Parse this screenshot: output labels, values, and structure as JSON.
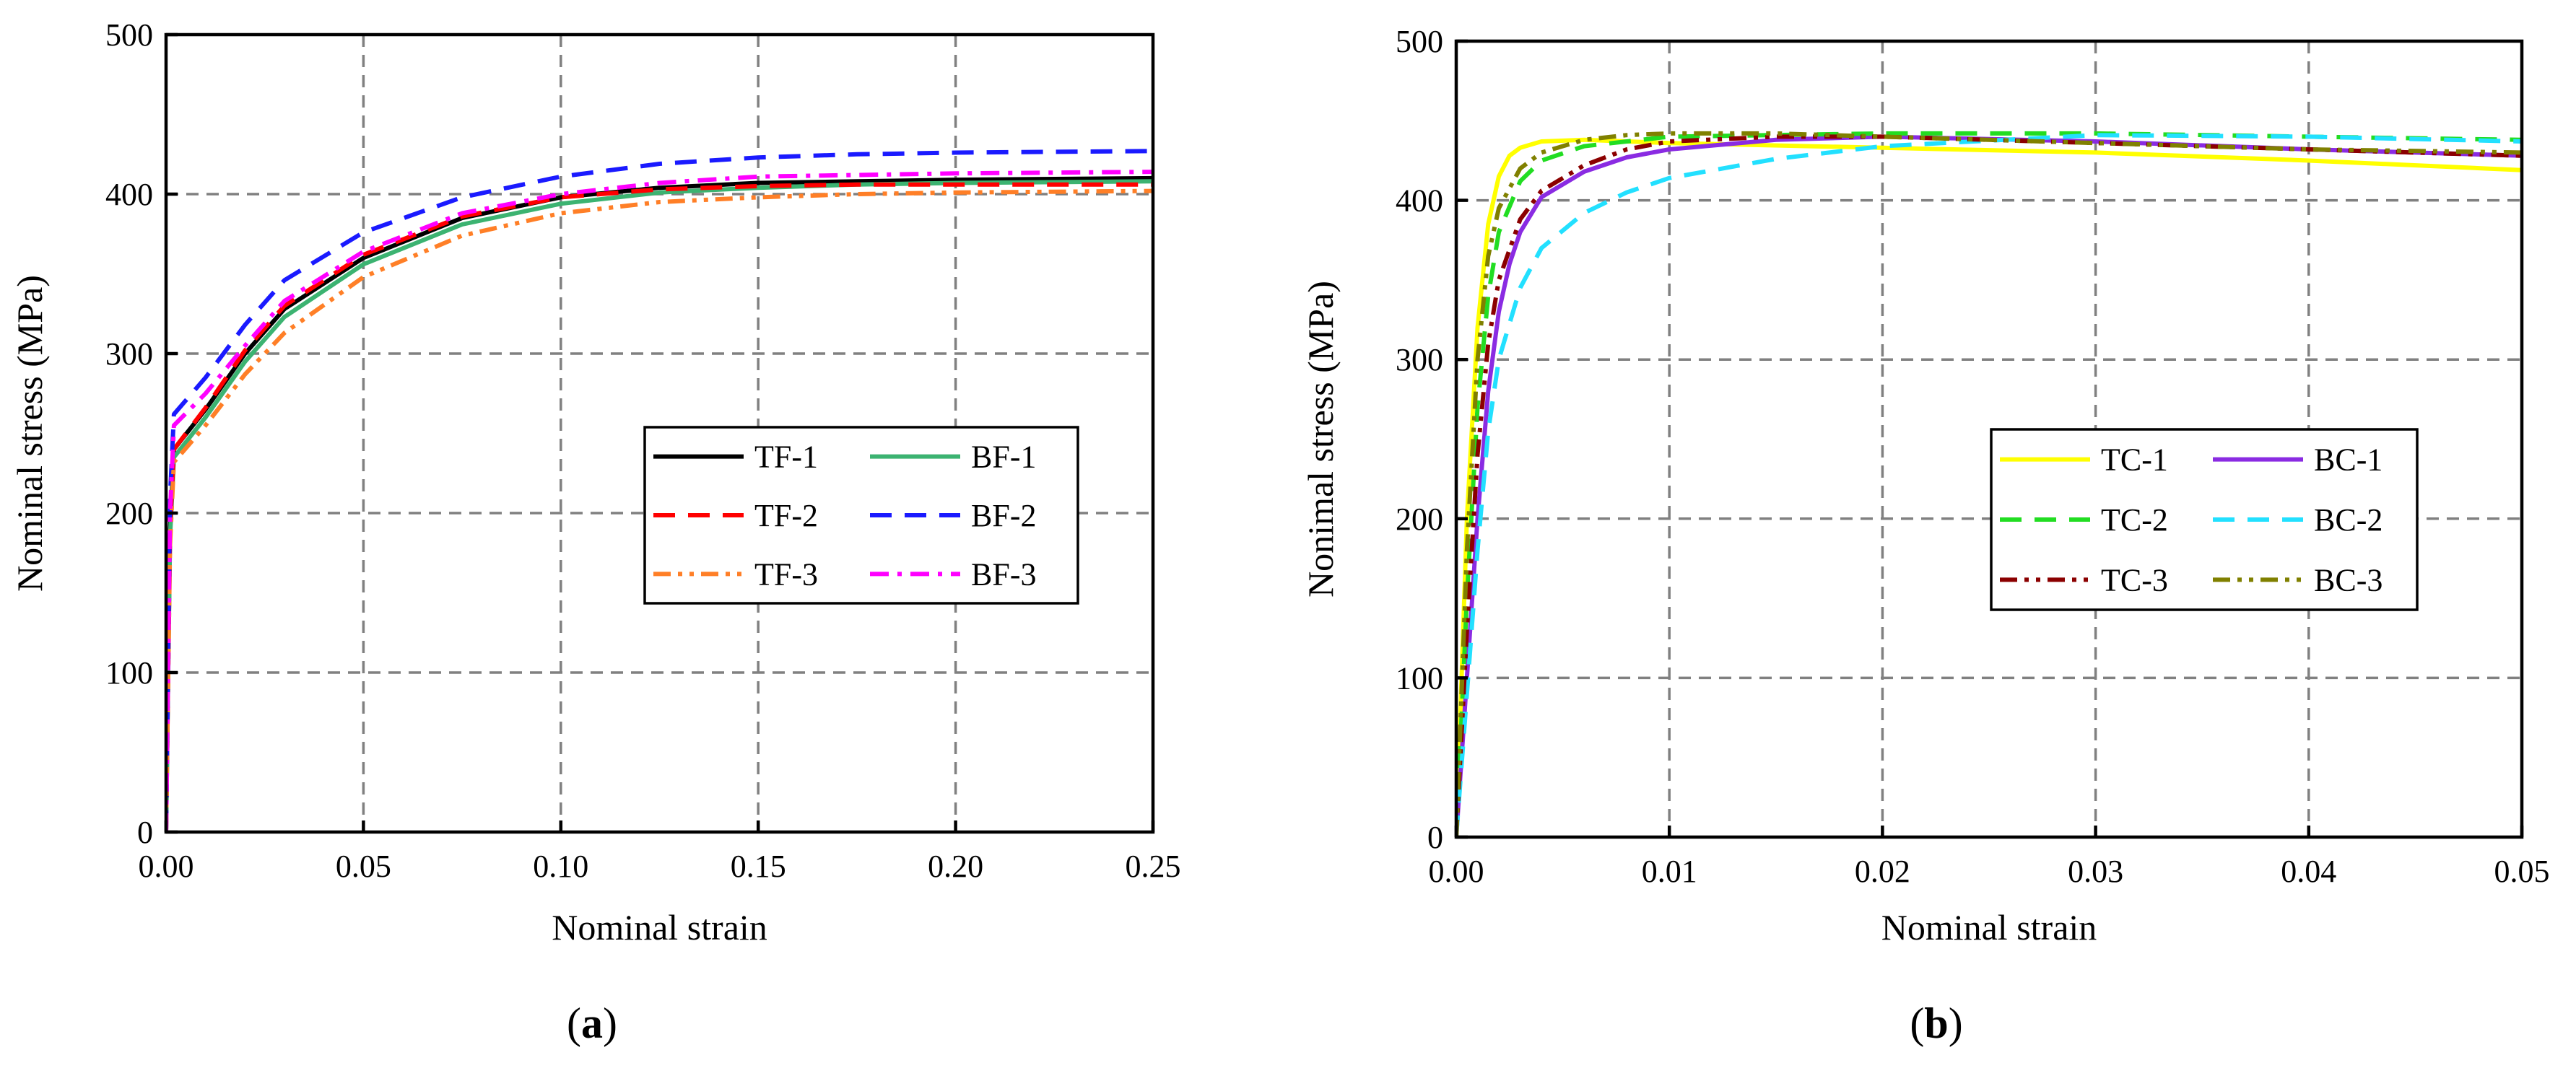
{
  "chart_data": [
    {
      "type": "line",
      "panel_label": "a",
      "title": "",
      "xlabel": "Nominal strain",
      "ylabel": "Nominal stress (MPa)",
      "xlim": [
        0,
        0.25
      ],
      "ylim": [
        0,
        500
      ],
      "xticks": [
        "0.00",
        "0.05",
        "0.10",
        "0.15",
        "0.20",
        "0.25"
      ],
      "yticks": [
        "0",
        "100",
        "200",
        "300",
        "400",
        "500"
      ],
      "grid": true,
      "legend_position": "center-right",
      "legend_columns": 2,
      "series": [
        {
          "name": "TF-1",
          "color": "#000000",
          "dash": "solid",
          "x": [
            0,
            0.001,
            0.002,
            0.01,
            0.02,
            0.03,
            0.05,
            0.075,
            0.1,
            0.125,
            0.15,
            0.175,
            0.2,
            0.25
          ],
          "y": [
            0,
            190,
            240,
            265,
            300,
            328,
            360,
            385,
            398,
            404,
            407,
            408,
            409,
            410
          ]
        },
        {
          "name": "BF-1",
          "color": "#3cb371",
          "dash": "solid",
          "x": [
            0,
            0.001,
            0.002,
            0.01,
            0.02,
            0.03,
            0.05,
            0.075,
            0.1,
            0.125,
            0.15,
            0.175,
            0.2,
            0.25
          ],
          "y": [
            0,
            185,
            235,
            260,
            295,
            323,
            356,
            381,
            394,
            401,
            404,
            406,
            407,
            408
          ]
        },
        {
          "name": "TF-2",
          "color": "#ff0000",
          "dash": "dash",
          "x": [
            0,
            0.001,
            0.002,
            0.01,
            0.02,
            0.03,
            0.05,
            0.075,
            0.1,
            0.125,
            0.15,
            0.175,
            0.2,
            0.25
          ],
          "y": [
            0,
            190,
            240,
            266,
            302,
            330,
            362,
            386,
            398,
            403,
            405,
            406,
            406,
            406
          ]
        },
        {
          "name": "BF-2",
          "color": "#1a1aff",
          "dash": "dash",
          "x": [
            0,
            0.001,
            0.002,
            0.01,
            0.02,
            0.03,
            0.05,
            0.075,
            0.1,
            0.125,
            0.15,
            0.175,
            0.2,
            0.25
          ],
          "y": [
            0,
            210,
            262,
            285,
            318,
            346,
            376,
            398,
            411,
            419,
            423,
            425,
            426,
            427
          ]
        },
        {
          "name": "TF-3",
          "color": "#ff7f27",
          "dash": "dashdotdot",
          "x": [
            0,
            0.001,
            0.002,
            0.01,
            0.02,
            0.03,
            0.05,
            0.075,
            0.1,
            0.125,
            0.15,
            0.175,
            0.2,
            0.25
          ],
          "y": [
            0,
            180,
            232,
            255,
            287,
            313,
            348,
            374,
            388,
            395,
            398,
            400,
            401,
            402
          ]
        },
        {
          "name": "BF-3",
          "color": "#ff00ff",
          "dash": "dashdot",
          "x": [
            0,
            0.001,
            0.002,
            0.01,
            0.02,
            0.03,
            0.05,
            0.075,
            0.1,
            0.125,
            0.15,
            0.175,
            0.2,
            0.25
          ],
          "y": [
            0,
            200,
            255,
            275,
            305,
            333,
            364,
            388,
            400,
            407,
            411,
            412,
            413,
            414
          ]
        }
      ]
    },
    {
      "type": "line",
      "panel_label": "b",
      "title": "",
      "xlabel": "Nominal strain",
      "ylabel": "Nonimal stress (MPa)",
      "xlim": [
        0,
        0.05
      ],
      "ylim": [
        0,
        500
      ],
      "xticks": [
        "0.00",
        "0.01",
        "0.02",
        "0.03",
        "0.04",
        "0.05"
      ],
      "yticks": [
        "0",
        "100",
        "200",
        "300",
        "400",
        "500"
      ],
      "grid": true,
      "legend_position": "center-right",
      "legend_columns": 2,
      "series": [
        {
          "name": "TC-1",
          "color": "#ffff00",
          "dash": "solid",
          "x": [
            0,
            0.0005,
            0.001,
            0.0015,
            0.002,
            0.0025,
            0.003,
            0.004,
            0.006,
            0.01,
            0.02,
            0.03,
            0.04,
            0.05
          ],
          "y": [
            0,
            200,
            320,
            385,
            415,
            428,
            433,
            437,
            438,
            436,
            433,
            430,
            425,
            419
          ]
        },
        {
          "name": "BC-1",
          "color": "#8a2be2",
          "dash": "solid",
          "x": [
            0,
            0.0005,
            0.001,
            0.0015,
            0.002,
            0.0025,
            0.003,
            0.004,
            0.006,
            0.008,
            0.01,
            0.015,
            0.02,
            0.03,
            0.04,
            0.05
          ],
          "y": [
            0,
            100,
            200,
            280,
            330,
            360,
            380,
            402,
            418,
            427,
            432,
            438,
            440,
            437,
            432,
            428
          ]
        },
        {
          "name": "TC-2",
          "color": "#22dd22",
          "dash": "dash",
          "x": [
            0,
            0.0005,
            0.001,
            0.0015,
            0.002,
            0.003,
            0.004,
            0.006,
            0.01,
            0.02,
            0.03,
            0.04,
            0.05
          ],
          "y": [
            0,
            150,
            270,
            340,
            380,
            412,
            425,
            434,
            440,
            442,
            442,
            440,
            438
          ]
        },
        {
          "name": "BC-2",
          "color": "#22e0ff",
          "dash": "dash",
          "x": [
            0,
            0.0005,
            0.001,
            0.0015,
            0.002,
            0.003,
            0.004,
            0.006,
            0.008,
            0.01,
            0.015,
            0.02,
            0.03,
            0.04,
            0.05
          ],
          "y": [
            0,
            90,
            180,
            255,
            300,
            345,
            370,
            392,
            405,
            414,
            426,
            434,
            441,
            440,
            437
          ]
        },
        {
          "name": "TC-3",
          "color": "#8b0000",
          "dash": "dashdotdot",
          "x": [
            0,
            0.0005,
            0.001,
            0.0015,
            0.002,
            0.003,
            0.004,
            0.006,
            0.008,
            0.01,
            0.015,
            0.02,
            0.03,
            0.04,
            0.05
          ],
          "y": [
            0,
            130,
            240,
            310,
            350,
            388,
            406,
            422,
            432,
            437,
            440,
            440,
            436,
            432,
            428
          ]
        },
        {
          "name": "BC-3",
          "color": "#808000",
          "dash": "dashdotdot",
          "x": [
            0,
            0.0005,
            0.001,
            0.0015,
            0.002,
            0.003,
            0.004,
            0.006,
            0.008,
            0.01,
            0.015,
            0.02,
            0.03,
            0.04,
            0.05
          ],
          "y": [
            0,
            180,
            300,
            365,
            395,
            420,
            430,
            438,
            441,
            442,
            442,
            440,
            436,
            432,
            430
          ]
        }
      ]
    }
  ]
}
